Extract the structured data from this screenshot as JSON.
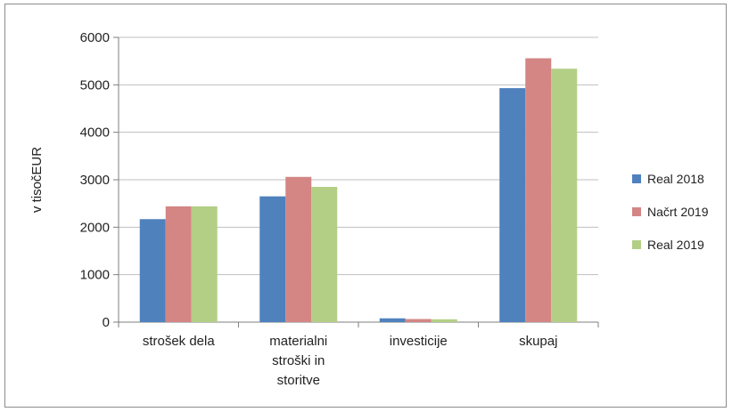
{
  "chart_data": {
    "type": "bar",
    "title": "",
    "xlabel": "",
    "ylabel": "v tisočEUR",
    "ylim": [
      0,
      6000
    ],
    "yticks": [
      0,
      1000,
      2000,
      3000,
      4000,
      5000,
      6000
    ],
    "categories": [
      [
        "strošek dela"
      ],
      [
        "materialni",
        "stroški in",
        "storitve"
      ],
      [
        "investicije"
      ],
      [
        "skupaj"
      ]
    ],
    "series": [
      {
        "name": "Real 2018",
        "color": "#4f81bd",
        "values": [
          2170,
          2650,
          80,
          4930
        ]
      },
      {
        "name": "Načrt 2019",
        "color": "#d38684",
        "values": [
          2440,
          3060,
          65,
          5560
        ]
      },
      {
        "name": "Real 2019",
        "color": "#b3cf86",
        "values": [
          2440,
          2850,
          60,
          5340
        ]
      }
    ],
    "grid": true,
    "legend_position": "right"
  }
}
